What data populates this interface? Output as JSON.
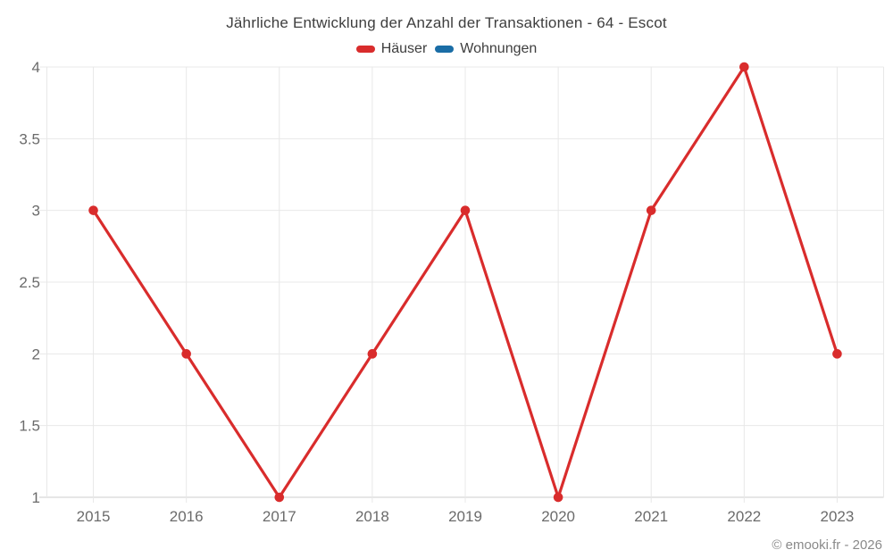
{
  "chart_data": {
    "type": "line",
    "title": "Jährliche Entwicklung der Anzahl der Transaktionen - 64 - Escot",
    "categories": [
      "2015",
      "2016",
      "2017",
      "2018",
      "2019",
      "2020",
      "2021",
      "2022",
      "2023"
    ],
    "series": [
      {
        "name": "Häuser",
        "color": "#d92c2c",
        "values": [
          3,
          2,
          1,
          2,
          3,
          1,
          3,
          4,
          2
        ]
      },
      {
        "name": "Wohnungen",
        "color": "#1a6da6",
        "values": []
      }
    ],
    "xlabel": "",
    "ylabel": "",
    "ylim": [
      1,
      4
    ],
    "ytick_step": 0.5,
    "ytick_labels": [
      "1",
      "1.5",
      "2",
      "2.5",
      "3",
      "3.5",
      "4"
    ],
    "grid": true,
    "legend_position": "top",
    "marker": "circle"
  },
  "legend": {
    "items": [
      {
        "label": "Häuser",
        "color": "#d92c2c"
      },
      {
        "label": "Wohnungen",
        "color": "#1a6da6"
      }
    ]
  },
  "footer": {
    "copyright": "© emooki.fr - 2026"
  },
  "colors": {
    "series_hauser": "#d92c2c",
    "series_wohnungen": "#1a6da6",
    "gridline": "#e8e8e8",
    "axis_line": "#cccccc",
    "tick_text": "#6b6b6b",
    "title_text": "#3e3e3e",
    "footer_text": "#8a8a8a"
  }
}
